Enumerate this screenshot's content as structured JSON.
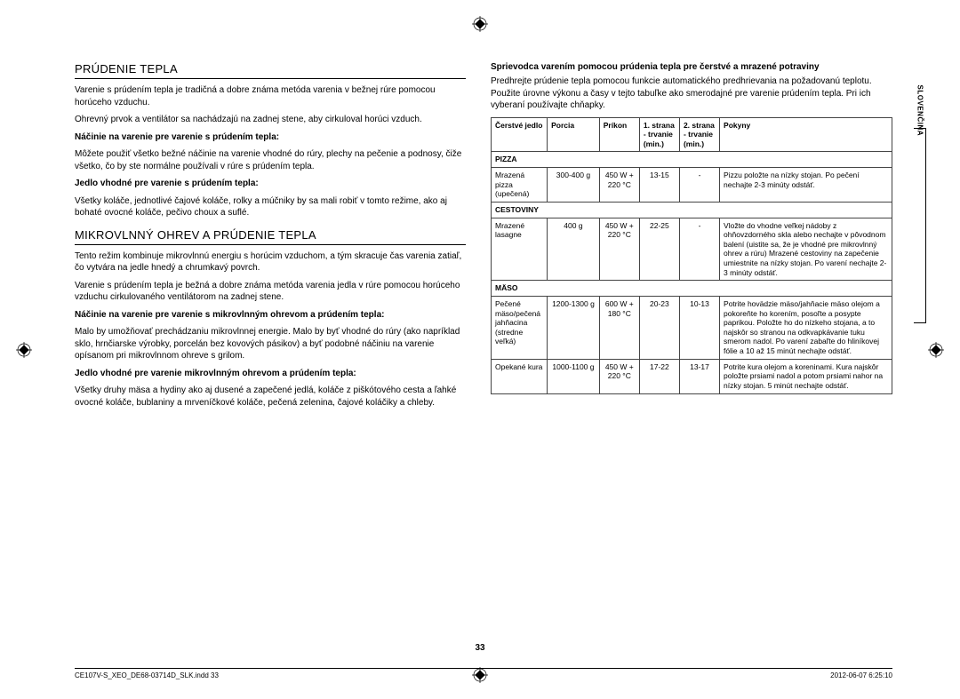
{
  "sideTab": "SLOVENČINA",
  "pageNumber": "33",
  "footer": {
    "left": "CE107V-S_XEO_DE68-03714D_SLK.indd   33",
    "right": "2012-06-07     6:25:10"
  },
  "left": {
    "h1": "PRÚDENIE TEPLA",
    "p1": "Varenie s prúdením tepla je tradičná a dobre známa metóda varenia v bežnej rúre pomocou horúceho vzduchu.",
    "p2": "Ohrevný prvok a ventilátor sa nachádzajú na zadnej stene, aby cirkuloval horúci vzduch.",
    "b1": "Náčinie na varenie pre varenie s prúdením tepla:",
    "p3": "Môžete použiť všetko bežné náčinie na varenie vhodné do rúry, plechy na pečenie a podnosy, čiže všetko, čo by ste normálne používali v rúre s prúdením tepla.",
    "b2": "Jedlo vhodné pre varenie s prúdením tepla:",
    "p4": "Všetky koláče, jednotlivé čajové koláče, rolky a múčniky by sa mali robiť v tomto režime, ako aj bohaté ovocné koláče, pečivo choux a suflé.",
    "h2": "MIKROVLNNÝ OHREV A PRÚDENIE TEPLA",
    "p5": "Tento režim kombinuje mikrovlnnú energiu s horúcim vzduchom, a tým skracuje čas varenia zatiaľ, čo vytvára na jedle hnedý a chrumkavý povrch.",
    "p6": "Varenie s prúdením tepla je bežná a dobre známa metóda varenia jedla v rúre pomocou horúceho vzduchu cirkulovaného ventilátorom na zadnej stene.",
    "b3": "Náčinie na varenie pre varenie s mikrovlnným ohrevom a prúdením tepla:",
    "p7": "Malo by umožňovať prechádzaniu mikrovlnnej energie. Malo by byť vhodné do rúry (ako napríklad sklo, hrnčiarske výrobky, porcelán bez kovových pásikov) a byť podobné náčiniu na varenie opísanom pri mikrovlnnom ohreve s grilom.",
    "b4": "Jedlo vhodné pre varenie mikrovlnným ohrevom a prúdením tepla:",
    "p8": "Všetky druhy mäsa a hydiny ako aj dusené a zapečené jedlá, koláče z piškótového cesta a ľahké ovocné koláče, bublaniny a mrveníčkové koláče, pečená zelenina, čajové koláčiky a chleby."
  },
  "right": {
    "subhead": "Sprievodca varením pomocou prúdenia tepla pre čerstvé a mrazené potraviny",
    "intro": "Predhrejte prúdenie tepla pomocou funkcie automatického predhrievania na požadovanú teplotu. Použite úrovne výkonu a časy v tejto tabuľke ako smerodajné pre varenie prúdením tepla. Pri ich vyberaní používajte chňapky.",
    "headers": [
      "Čerstvé jedlo",
      "Porcia",
      "Príkon",
      "1. strana - trvanie (min.)",
      "2. strana - trvanie (min.)",
      "Pokyny"
    ],
    "colwidths": [
      "14%",
      "13%",
      "10%",
      "10%",
      "10%",
      "43%"
    ],
    "categories": [
      {
        "label": "PIZZA",
        "rows": [
          {
            "c": [
              "Mrazená pizza (upečená)",
              "300-400 g",
              "450 W + 220 °C",
              "13-15",
              "-",
              "Pizzu položte na nízky stojan. Po pečení nechajte 2-3 minúty odstáť."
            ]
          }
        ]
      },
      {
        "label": "CESTOVINY",
        "rows": [
          {
            "c": [
              "Mrazené lasagne",
              "400 g",
              "450 W + 220 °C",
              "22-25",
              "-",
              "Vložte do vhodne veľkej nádoby z ohňovzdorného skla alebo nechajte v pôvodnom balení (uistite sa, že je vhodné pre mikrovlnný ohrev a rúru) Mrazené cestoviny na zapečenie umiestnite na nízky stojan. Po varení nechajte 2-3 minúty odstáť."
            ]
          }
        ]
      },
      {
        "label": "MÄSO",
        "rows": [
          {
            "c": [
              "Pečené mäso/pečená jahňacina (stredne veľká)",
              "1200-1300 g",
              "600 W + 180 °C",
              "20-23",
              "10-13",
              "Potrite hovädzie mäso/jahňacie mäso olejom a pokoreňte ho korením, posoľte a posypte paprikou. Položte ho do nízkeho stojana, a to najskôr so stranou na odkvapkávanie tuku smerom nadol. Po varení zabaľte do hliníkovej fólie a 10 až 15 minút nechajte odstáť."
            ]
          },
          {
            "c": [
              "Opekané kura",
              "1000-1100 g",
              "450 W + 220 °C",
              "17-22",
              "13-17",
              "Potrite kura olejom a koreninami. Kura najskôr položte prsiami nadol a potom prsiami nahor na nízky stojan. 5 minút nechajte odstáť."
            ]
          }
        ]
      }
    ]
  }
}
